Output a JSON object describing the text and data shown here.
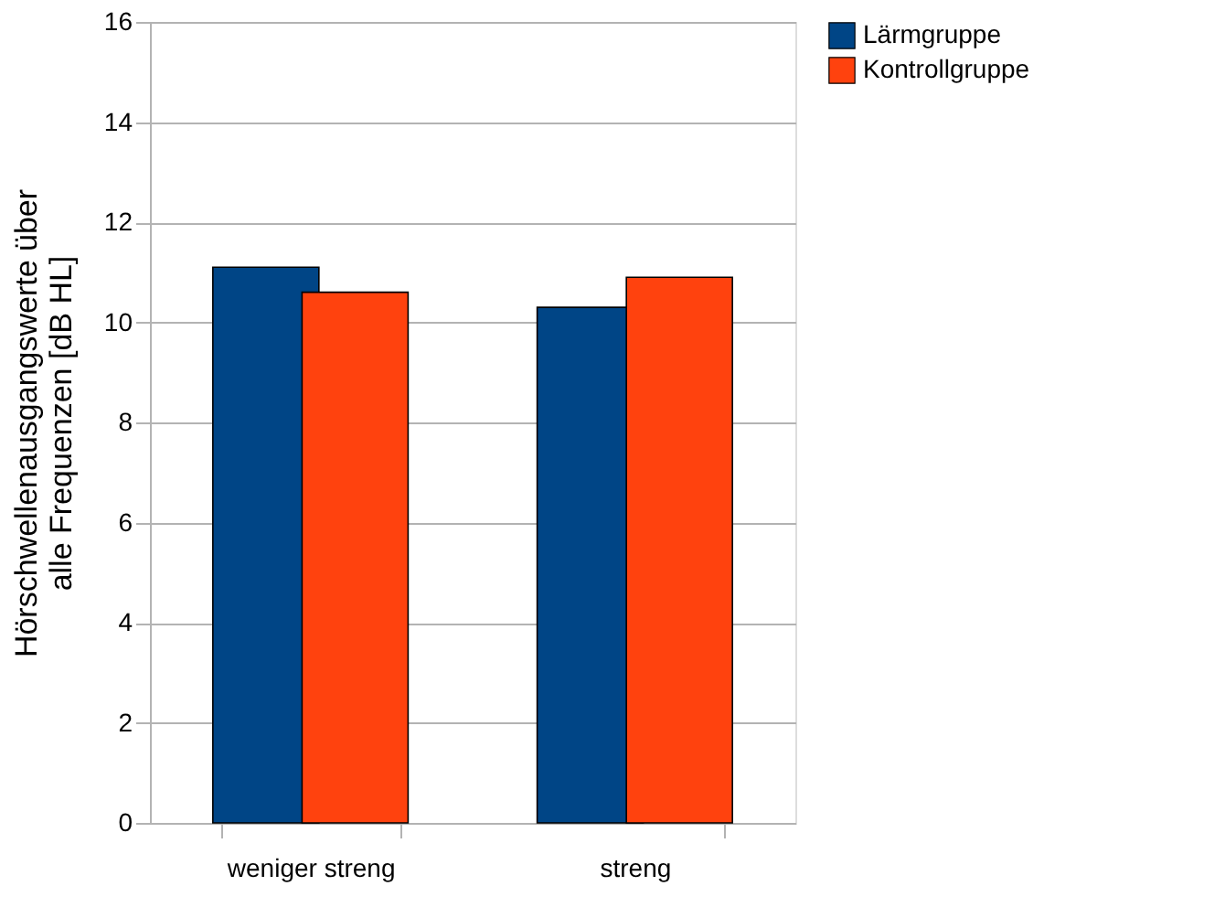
{
  "chart_data": {
    "type": "bar",
    "ylabel": "Hörschwellenausgangswerte über\nalle Frequenzen [dB HL]",
    "categories": [
      "weniger streng",
      "streng"
    ],
    "series": [
      {
        "name": "Lärmgruppe",
        "color": "#004586",
        "values": [
          11.1,
          10.3
        ]
      },
      {
        "name": "Kontrollgruppe",
        "color": "#ff420e",
        "values": [
          10.6,
          10.9
        ]
      }
    ],
    "ylim": [
      0,
      16
    ],
    "yticks": [
      0,
      2,
      4,
      6,
      8,
      10,
      12,
      14,
      16
    ],
    "grid": "y",
    "legend": "right"
  }
}
